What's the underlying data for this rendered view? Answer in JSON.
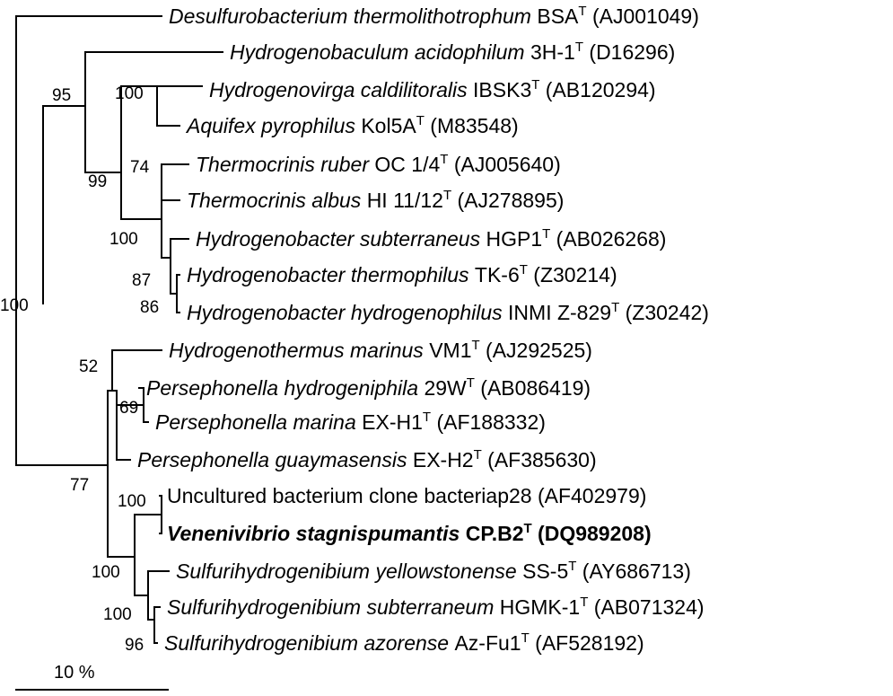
{
  "taxa": [
    {
      "id": "t1",
      "italic": "Desulfurobacterium thermolithotrophum",
      "strain": "BSA",
      "sup": "T",
      "accession": "(AJ001049)"
    },
    {
      "id": "t2",
      "italic": "Hydrogenobaculum acidophilum",
      "strain": "3H-1",
      "sup": "T",
      "accession": "(D16296)"
    },
    {
      "id": "t3",
      "italic": "Hydrogenovirga caldilitoralis",
      "strain": "IBSK3",
      "sup": "T",
      "accession": "(AB120294)"
    },
    {
      "id": "t4",
      "italic": "Aquifex pyrophilus",
      "strain": "Kol5A",
      "sup": "T",
      "accession": "(M83548)"
    },
    {
      "id": "t5",
      "italic": "Thermocrinis ruber",
      "strain": "OC 1/4",
      "sup": "T",
      "accession": "(AJ005640)"
    },
    {
      "id": "t6",
      "italic": "Thermocrinis albus",
      "strain": "HI 11/12",
      "sup": "T",
      "accession": "(AJ278895)"
    },
    {
      "id": "t7",
      "italic": "Hydrogenobacter subterraneus",
      "strain": "HGP1",
      "sup": "T",
      "accession": "(AB026268)"
    },
    {
      "id": "t8",
      "italic": "Hydrogenobacter thermophilus",
      "strain": "TK-6",
      "sup": "T",
      "accession": "(Z30214)"
    },
    {
      "id": "t9",
      "italic": "Hydrogenobacter hydrogenophilus",
      "strain": "INMI Z-829",
      "sup": "T",
      "accession": "(Z30242)"
    },
    {
      "id": "t10",
      "italic": "Hydrogenothermus marinus",
      "strain": "VM1",
      "sup": "T",
      "accession": "(AJ292525)"
    },
    {
      "id": "t11",
      "italic": "Persephonella hydrogeniphila",
      "strain": "29W",
      "sup": "T",
      "accession": "(AB086419)"
    },
    {
      "id": "t12",
      "italic": "Persephonella marina",
      "strain": "EX-H1",
      "sup": "T",
      "accession": "(AF188332)"
    },
    {
      "id": "t13",
      "italic": "Persephonella guaymasensis",
      "strain": "EX-H2",
      "sup": "T",
      "accession": "(AF385630)"
    },
    {
      "id": "t14",
      "italic": "",
      "strain": "Uncultured bacterium clone bacteriap28",
      "sup": "",
      "accession": "(AF402979)"
    },
    {
      "id": "t15",
      "italic": "Venenivibrio stagnispumantis",
      "strain": "CP.B2",
      "sup": "T",
      "accession": "(DQ989208)",
      "bold": true
    },
    {
      "id": "t16",
      "italic": "Sulfurihydrogenibium yellowstonense",
      "strain": "SS-5",
      "sup": "T",
      "accession": "(AY686713)"
    },
    {
      "id": "t17",
      "italic": "Sulfurihydrogenibium subterraneum",
      "strain": "HGMK-1",
      "sup": "T",
      "accession": "(AB071324)"
    },
    {
      "id": "t18",
      "italic": "Sulfurihydrogenibium azorense",
      "strain": "Az-Fu1",
      "sup": "T",
      "accession": "(AF528192)"
    }
  ],
  "bootstrap": [
    {
      "node": "n95",
      "value": "95"
    },
    {
      "node": "n100a",
      "value": "100"
    },
    {
      "node": "n99",
      "value": "99"
    },
    {
      "node": "n74",
      "value": "74"
    },
    {
      "node": "n100b",
      "value": "100"
    },
    {
      "node": "n87",
      "value": "87"
    },
    {
      "node": "n86",
      "value": "86"
    },
    {
      "node": "n100c",
      "value": "100"
    },
    {
      "node": "n52",
      "value": "52"
    },
    {
      "node": "n69",
      "value": "69"
    },
    {
      "node": "n77",
      "value": "77"
    },
    {
      "node": "n100d",
      "value": "100"
    },
    {
      "node": "n100e",
      "value": "100"
    },
    {
      "node": "n100f",
      "value": "100"
    },
    {
      "node": "n96",
      "value": "96"
    }
  ],
  "scale_bar": {
    "label": "10 %"
  }
}
